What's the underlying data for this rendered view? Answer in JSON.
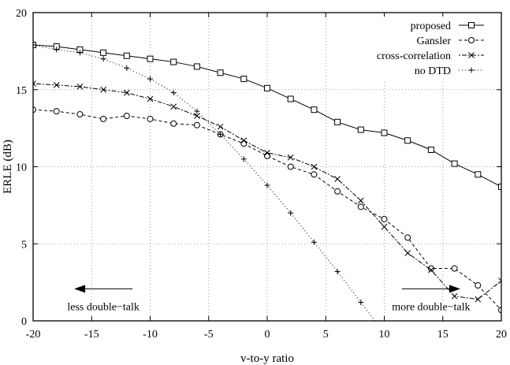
{
  "chart_data": {
    "type": "line",
    "xlabel": "v-to-y ratio",
    "ylabel": "ERLE (dB)",
    "xlim": [
      -20,
      20
    ],
    "ylim": [
      0,
      20
    ],
    "xticks": [
      -20,
      -15,
      -10,
      -5,
      0,
      5,
      10,
      15,
      20
    ],
    "yticks": [
      0,
      5,
      10,
      15,
      20
    ],
    "grid": true,
    "legend_position": "top-right",
    "series": [
      {
        "name": "proposed",
        "line_style": "solid",
        "marker": "square",
        "x": [
          -20,
          -18,
          -16,
          -14,
          -12,
          -10,
          -8,
          -6,
          -4,
          -2,
          0,
          2,
          4,
          6,
          8,
          10,
          12,
          14,
          16,
          18,
          20
        ],
        "y": [
          17.9,
          17.8,
          17.6,
          17.4,
          17.2,
          17.0,
          16.8,
          16.5,
          16.1,
          15.7,
          15.1,
          14.4,
          13.7,
          12.9,
          12.4,
          12.2,
          11.7,
          11.1,
          10.2,
          9.5,
          8.7
        ]
      },
      {
        "name": "Gansler",
        "line_style": "dashed",
        "marker": "circle",
        "x": [
          -20,
          -18,
          -16,
          -14,
          -12,
          -10,
          -8,
          -6,
          -4,
          -2,
          0,
          2,
          4,
          6,
          8,
          10,
          12,
          14,
          16,
          18,
          20
        ],
        "y": [
          13.7,
          13.6,
          13.4,
          13.1,
          13.3,
          13.1,
          12.8,
          12.7,
          12.1,
          11.5,
          10.7,
          10.0,
          9.5,
          8.4,
          7.4,
          6.6,
          5.4,
          3.4,
          3.4,
          2.3,
          0.7
        ]
      },
      {
        "name": "cross-correlation",
        "line_style": "dotted-dashed",
        "marker": "cross",
        "x": [
          -20,
          -18,
          -16,
          -14,
          -12,
          -10,
          -8,
          -6,
          -4,
          -2,
          0,
          2,
          4,
          6,
          8,
          10,
          12,
          14,
          16,
          18,
          20
        ],
        "y": [
          15.4,
          15.3,
          15.2,
          15.0,
          14.8,
          14.4,
          13.9,
          13.3,
          12.6,
          11.7,
          10.9,
          10.6,
          10.0,
          9.2,
          7.8,
          6.1,
          4.4,
          3.3,
          1.6,
          1.4,
          2.6
        ]
      },
      {
        "name": "no DTD",
        "line_style": "dotted",
        "marker": "plus",
        "x": [
          -20,
          -18,
          -16,
          -14,
          -12,
          -10,
          -8,
          -6,
          -4,
          -2,
          0,
          2,
          4,
          6,
          8,
          10
        ],
        "y": [
          17.9,
          17.6,
          17.4,
          17.0,
          16.4,
          15.7,
          14.8,
          13.6,
          12.1,
          10.5,
          8.8,
          7.0,
          5.1,
          3.2,
          1.2,
          -0.8
        ]
      }
    ],
    "annotations": [
      {
        "text": "less double−talk",
        "arrow": "left",
        "x": -14,
        "y": 0.7
      },
      {
        "text": "more double−talk",
        "arrow": "right",
        "x": 14,
        "y": 0.7
      }
    ]
  },
  "colors": {
    "line": "#000000",
    "grid": "#888888",
    "background": "#ffffff"
  }
}
